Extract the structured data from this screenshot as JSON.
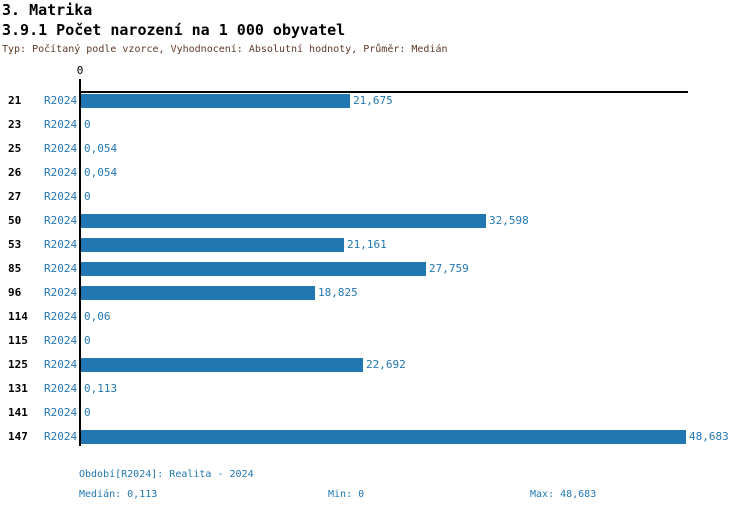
{
  "header": {
    "section_title": "3. Matrika",
    "report_title": "3.9.1 Počet narození na 1 000 obyvatel",
    "subtitle": "Typ: Počítaný podle vzorce, Vyhodnocení: Absolutní hodnoty, Průměr: Medián"
  },
  "chart_data": {
    "type": "bar",
    "orientation": "horizontal",
    "title": "3.9.1 Počet narození na 1 000 obyvatel",
    "x_axis_zero_label": "0",
    "xlim": [
      0,
      49
    ],
    "grid": false,
    "legend_position": "none",
    "categories": [
      "21",
      "23",
      "25",
      "26",
      "27",
      "50",
      "53",
      "85",
      "96",
      "114",
      "115",
      "125",
      "131",
      "141",
      "147"
    ],
    "series": [
      {
        "name": "R2024",
        "values": [
          21.675,
          0,
          0.054,
          0.054,
          0,
          32.598,
          21.161,
          27.759,
          18.825,
          0.06,
          0,
          22.692,
          0.113,
          0,
          48.683
        ],
        "value_labels": [
          "21,675",
          "0",
          "0,054",
          "0,054",
          "0",
          "32,598",
          "21,161",
          "27,759",
          "18,825",
          "0,06",
          "0",
          "22,692",
          "0,113",
          "0",
          "48,683"
        ]
      }
    ],
    "bar_color": "#2277b3"
  },
  "footer": {
    "period": "Období[R2024]: Realita - 2024",
    "median": "Medián: 0,113",
    "min": "Min: 0",
    "max": "Max: 48,683"
  },
  "colors": {
    "bar": "#2277b3",
    "blue_text": "#2277b3",
    "subtitle_text": "#5f3a2a",
    "title_text": "#000000",
    "axis": "#000000",
    "background": "#ffffff"
  }
}
